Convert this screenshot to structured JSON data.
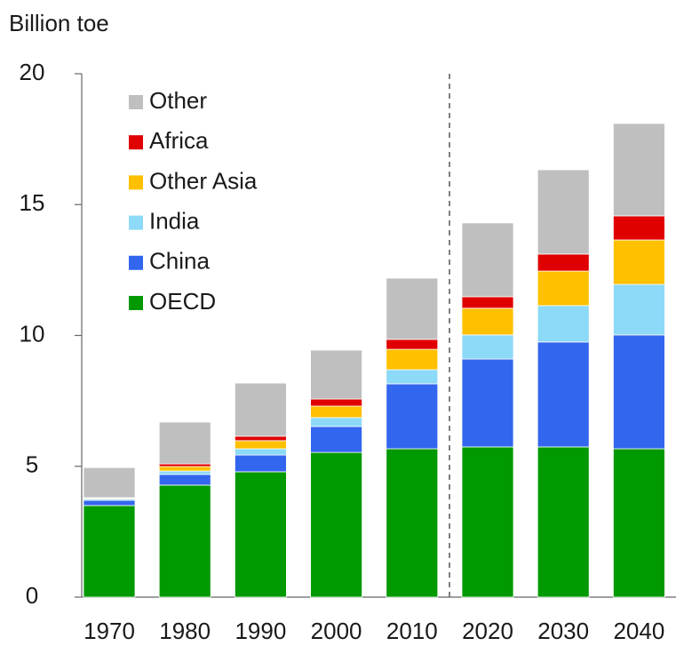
{
  "chart_data": {
    "type": "bar",
    "stacked": true,
    "y_label": "Billion toe",
    "categories": [
      "1970",
      "1980",
      "1990",
      "2000",
      "2010",
      "2020",
      "2030",
      "2040"
    ],
    "series": [
      {
        "name": "OECD",
        "color": "#009900",
        "values": [
          3.5,
          4.28,
          4.79,
          5.53,
          5.67,
          5.74,
          5.74,
          5.67
        ]
      },
      {
        "name": "China",
        "color": "#3366ee",
        "values": [
          0.2,
          0.41,
          0.64,
          0.99,
          2.48,
          3.36,
          4.01,
          4.35
        ]
      },
      {
        "name": "India",
        "color": "#8dd9f8",
        "values": [
          0.05,
          0.13,
          0.24,
          0.34,
          0.54,
          0.92,
          1.39,
          1.93
        ]
      },
      {
        "name": "Other Asia",
        "color": "#ffc000",
        "values": [
          0.03,
          0.17,
          0.31,
          0.44,
          0.78,
          1.02,
          1.32,
          1.7
        ]
      },
      {
        "name": "Africa",
        "color": "#e00000",
        "values": [
          0.02,
          0.1,
          0.17,
          0.27,
          0.38,
          0.44,
          0.65,
          0.92
        ]
      },
      {
        "name": "Other",
        "color": "#bfbfbf",
        "values": [
          1.15,
          1.6,
          2.03,
          1.87,
          2.34,
          2.82,
          3.22,
          3.53
        ]
      }
    ],
    "ylim": [
      0,
      20
    ],
    "yticks": [
      0,
      5,
      10,
      15,
      20
    ]
  }
}
